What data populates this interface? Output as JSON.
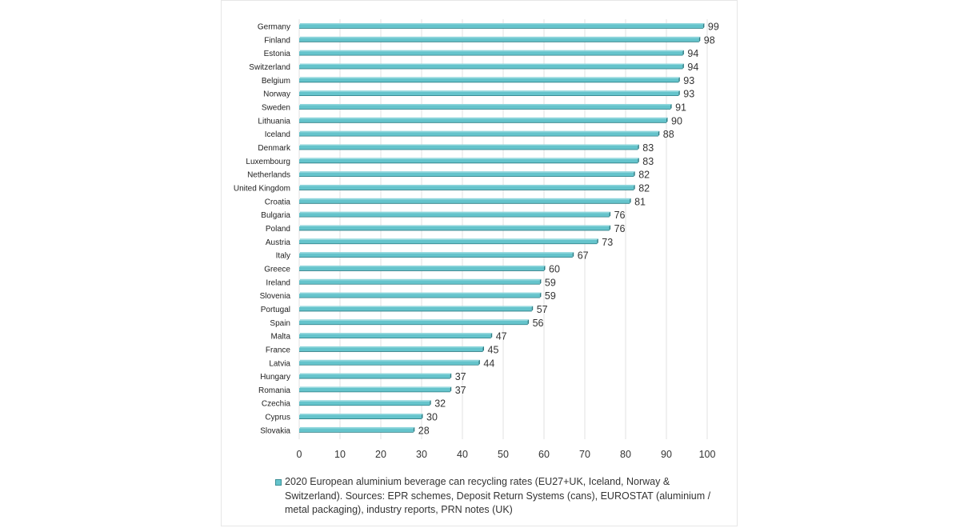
{
  "colors": {
    "bar_fill": "#65c4cc",
    "bar_top": "#8fd6dc",
    "bar_side": "#2f7d84",
    "grid": "#e0e0e0"
  },
  "chart_data": {
    "type": "bar",
    "orientation": "horizontal",
    "categories": [
      "Germany",
      "Finland",
      "Estonia",
      "Switzerland",
      "Belgium",
      "Norway",
      "Sweden",
      "Lithuania",
      "Iceland",
      "Denmark",
      "Luxembourg",
      "Netherlands",
      "United Kingdom",
      "Croatia",
      "Bulgaria",
      "Poland",
      "Austria",
      "Italy",
      "Greece",
      "Ireland",
      "Slovenia",
      "Portugal",
      "Spain",
      "Malta",
      "France",
      "Latvia",
      "Hungary",
      "Romania",
      "Czechia",
      "Cyprus",
      "Slovakia"
    ],
    "series": [
      {
        "name": "2020 European aluminium beverage can recycling rates (EU27+UK, Iceland, Norway & Switzerland). Sources: EPR schemes, Deposit Return Systems (cans), EUROSTAT (aluminium / metal packaging), industry reports, PRN notes (UK)",
        "values": [
          99,
          98,
          94,
          94,
          93,
          93,
          91,
          90,
          88,
          83,
          83,
          82,
          82,
          81,
          76,
          76,
          73,
          67,
          60,
          59,
          59,
          57,
          56,
          47,
          45,
          44,
          37,
          37,
          32,
          30,
          28
        ]
      }
    ],
    "xlim": [
      0,
      100
    ],
    "xticks": [
      0,
      10,
      20,
      30,
      40,
      50,
      60,
      70,
      80,
      90,
      100
    ],
    "grid": "vertical",
    "legend_position": "bottom",
    "title": "",
    "xlabel": "",
    "ylabel": ""
  }
}
